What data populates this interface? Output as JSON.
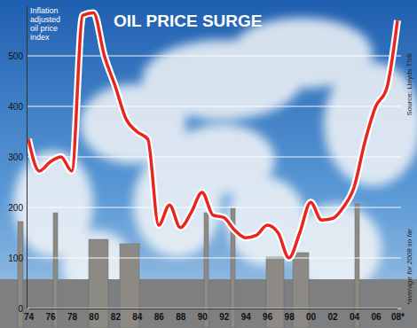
{
  "chart_data": {
    "type": "line",
    "title": "OIL PRICE SURGE",
    "y_label": "Inflation adjusted oil price index",
    "source": "Source: Lloyds TSB",
    "note": "*average for 2008 so far",
    "categories": [
      "74",
      null,
      "76",
      null,
      "78",
      null,
      "80",
      null,
      "82",
      null,
      "84",
      null,
      "86",
      null,
      "88",
      null,
      "90",
      null,
      "92",
      null,
      "94",
      null,
      "96",
      null,
      "98",
      null,
      "00",
      null,
      "02",
      null,
      "04",
      null,
      "06",
      null,
      "08*"
    ],
    "values": [
      335,
      272,
      290,
      300,
      272,
      580,
      585,
      500,
      440,
      375,
      350,
      335,
      165,
      205,
      160,
      190,
      230,
      185,
      180,
      155,
      140,
      145,
      165,
      150,
      100,
      150,
      210,
      175,
      178,
      200,
      240,
      330,
      400,
      435,
      570
    ],
    "color": "#e8251f",
    "ylim": [
      0,
      600
    ],
    "yticks": [
      0,
      100,
      200,
      300,
      400,
      500
    ],
    "grid": true
  }
}
